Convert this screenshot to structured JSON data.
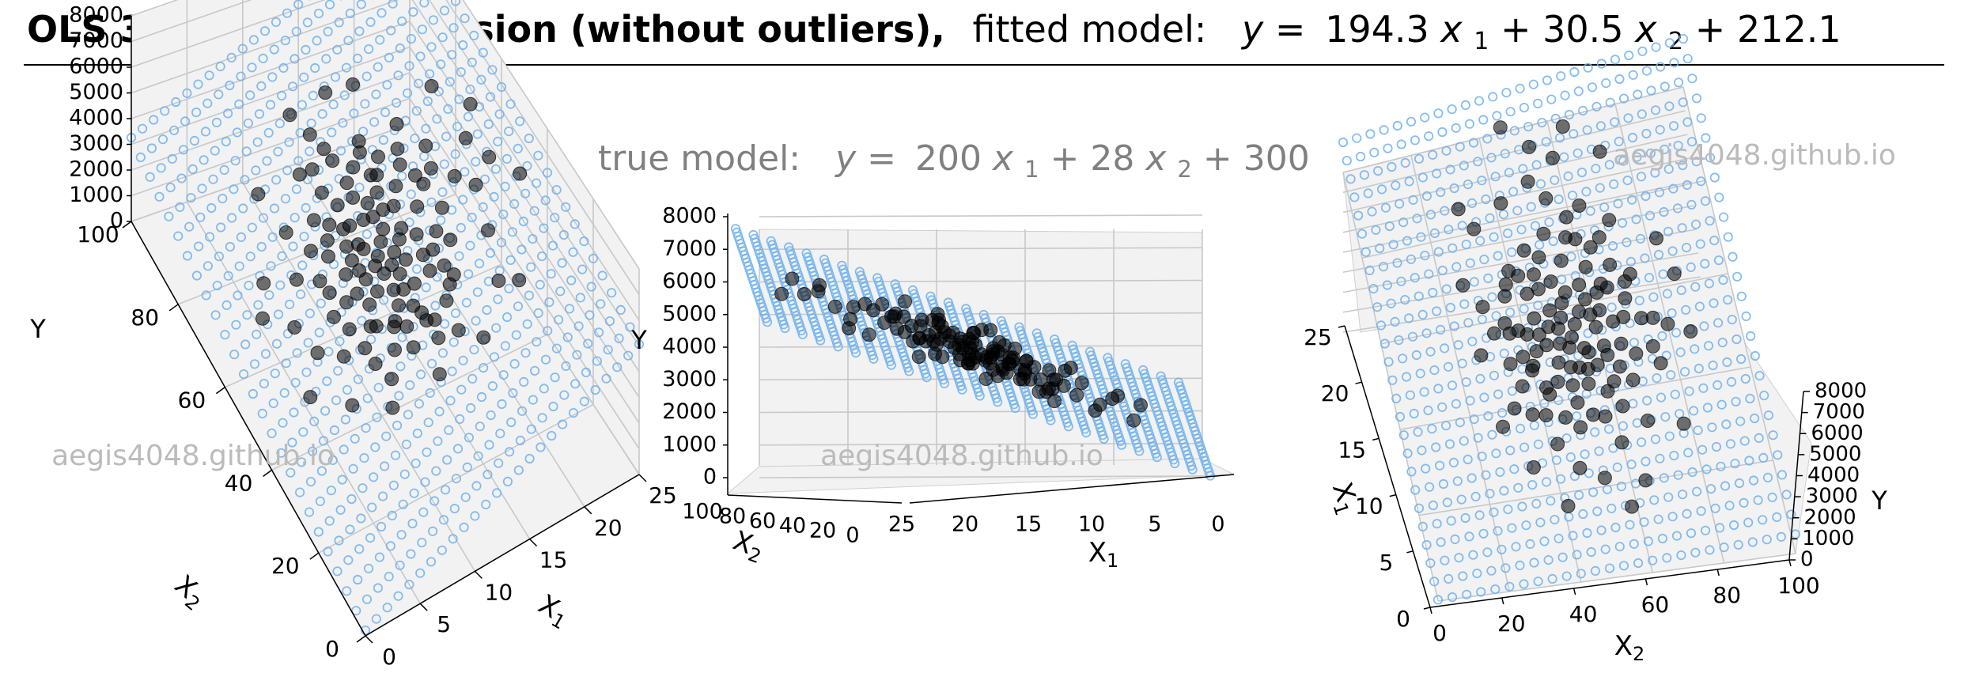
{
  "title": {
    "bold": "OLS 3D Linear Regression (without outliers),",
    "prefix": "fitted model:",
    "model": {
      "c1": "194.3",
      "c2": "30.5",
      "intercept": "212.1"
    }
  },
  "true_model": {
    "prefix": "true model:",
    "c1": "200",
    "c2": "28",
    "intercept": "300"
  },
  "watermark": "aegis4048.github.io",
  "colors": {
    "plane": "#6fb2f0",
    "points": "#000000",
    "annotation": "#808080",
    "watermark": "#bbbbbb"
  },
  "axis_labels": {
    "x1": "X",
    "x1_sub": "1",
    "x2": "X",
    "x2_sub": "2",
    "y": "Y"
  },
  "ticks": {
    "x1": [
      "0",
      "5",
      "10",
      "15",
      "20",
      "25"
    ],
    "x2": [
      "0",
      "20",
      "40",
      "60",
      "80",
      "100"
    ],
    "y": [
      "0",
      "1000",
      "2000",
      "3000",
      "4000",
      "5000",
      "6000",
      "7000",
      "8000"
    ]
  },
  "chart_data": [
    {
      "type": "scatter",
      "view": "perspective",
      "title": "",
      "xlabel": "X1",
      "ylabel": "X2",
      "zlabel": "Y",
      "xlim": [
        0,
        25
      ],
      "ylim": [
        0,
        100
      ],
      "zlim": [
        0,
        8000
      ],
      "grid": true,
      "surface": {
        "name": "fitted plane",
        "c1": 194.3,
        "c2": 30.5,
        "intercept": 212.1
      },
      "series_ref": "points"
    },
    {
      "type": "scatter",
      "view": "edge-on",
      "xlabel": "X1",
      "ylabel": "X2",
      "zlabel": "Y",
      "xlim": [
        0,
        25
      ],
      "ylim": [
        0,
        100
      ],
      "zlim": [
        0,
        8000
      ],
      "grid": true,
      "surface": {
        "name": "fitted plane",
        "c1": 194.3,
        "c2": 30.5,
        "intercept": 212.1
      },
      "series_ref": "points"
    },
    {
      "type": "scatter",
      "view": "top-down",
      "xlabel": "X1",
      "ylabel": "X2",
      "zlabel": "Y",
      "xlim": [
        0,
        25
      ],
      "ylim": [
        0,
        100
      ],
      "zlim": [
        0,
        8000
      ],
      "grid": true,
      "surface": {
        "name": "fitted plane",
        "c1": 194.3,
        "c2": 30.5,
        "intercept": 212.1
      },
      "series_ref": "points"
    }
  ],
  "points": [
    [
      12.6,
      48.2,
      4100
    ],
    [
      9.8,
      41.5,
      3300
    ],
    [
      14.2,
      62.3,
      5200
    ],
    [
      11.0,
      55.0,
      4200
    ],
    [
      7.9,
      52.6,
      3300
    ],
    [
      13.1,
      30.4,
      3800
    ],
    [
      15.6,
      44.7,
      4600
    ],
    [
      10.4,
      67.8,
      4400
    ],
    [
      16.8,
      58.1,
      5300
    ],
    [
      8.6,
      36.2,
      2900
    ],
    [
      12.1,
      71.4,
      4800
    ],
    [
      11.7,
      40.9,
      3800
    ],
    [
      13.8,
      50.6,
      4500
    ],
    [
      9.3,
      60.2,
      3900
    ],
    [
      14.9,
      35.5,
      4100
    ],
    [
      10.9,
      46.3,
      3700
    ],
    [
      12.9,
      57.7,
      4500
    ],
    [
      15.1,
      66.0,
      5200
    ],
    [
      8.1,
      45.0,
      3000
    ],
    [
      11.4,
      33.1,
      3400
    ],
    [
      17.5,
      49.8,
      5100
    ],
    [
      13.4,
      42.2,
      4100
    ],
    [
      10.2,
      53.9,
      3900
    ],
    [
      12.3,
      63.5,
      4500
    ],
    [
      14.5,
      56.4,
      4800
    ],
    [
      9.6,
      48.8,
      3500
    ],
    [
      16.1,
      38.0,
      4500
    ],
    [
      11.2,
      59.6,
      4200
    ],
    [
      13.0,
      37.2,
      3800
    ],
    [
      12.0,
      51.3,
      4100
    ],
    [
      6.8,
      41.2,
      2800
    ],
    [
      15.9,
      53.0,
      5000
    ],
    [
      10.6,
      72.9,
      4500
    ],
    [
      18.4,
      61.2,
      5700
    ],
    [
      8.9,
      57.9,
      3700
    ],
    [
      13.6,
      46.9,
      4300
    ],
    [
      11.9,
      44.0,
      3900
    ],
    [
      14.1,
      69.1,
      5100
    ],
    [
      9.1,
      31.6,
      2900
    ],
    [
      12.7,
      39.4,
      3800
    ],
    [
      16.4,
      47.1,
      4800
    ],
    [
      10.0,
      62.7,
      4000
    ],
    [
      13.2,
      54.8,
      4400
    ],
    [
      11.5,
      50.1,
      4000
    ],
    [
      15.3,
      59.3,
      5000
    ],
    [
      7.4,
      48.4,
      3100
    ],
    [
      12.4,
      66.6,
      4600
    ],
    [
      14.7,
      41.7,
      4400
    ],
    [
      10.8,
      38.6,
      3500
    ],
    [
      13.9,
      60.8,
      4800
    ],
    [
      9.5,
      53.2,
      3600
    ],
    [
      17.0,
      55.5,
      5300
    ],
    [
      11.1,
      64.4,
      4300
    ],
    [
      12.8,
      45.6,
      4100
    ],
    [
      8.4,
      39.8,
      3000
    ],
    [
      15.0,
      48.9,
      4700
    ],
    [
      10.3,
      56.7,
      4000
    ],
    [
      13.5,
      33.9,
      3900
    ],
    [
      12.2,
      58.5,
      4400
    ],
    [
      14.3,
      52.2,
      4600
    ],
    [
      9.9,
      44.9,
      3600
    ],
    [
      16.6,
      64.8,
      5400
    ],
    [
      11.6,
      36.9,
      3600
    ],
    [
      13.3,
      68.2,
      4800
    ],
    [
      10.5,
      49.3,
      3800
    ],
    [
      19.2,
      52.5,
      5600
    ],
    [
      8.0,
      61.1,
      3600
    ],
    [
      14.8,
      45.1,
      4500
    ],
    [
      12.5,
      42.6,
      4000
    ],
    [
      11.3,
      54.1,
      4100
    ],
    [
      15.7,
      40.3,
      4600
    ],
    [
      9.2,
      65.5,
      3900
    ],
    [
      13.7,
      57.2,
      4700
    ],
    [
      10.1,
      35.0,
      3300
    ],
    [
      12.0,
      74.6,
      4800
    ],
    [
      16.9,
      43.4,
      4900
    ],
    [
      11.8,
      47.7,
      4000
    ],
    [
      14.0,
      63.9,
      5000
    ],
    [
      7.7,
      55.8,
      3300
    ],
    [
      13.1,
      49.5,
      4300
    ],
    [
      10.7,
      60.0,
      4100
    ],
    [
      15.4,
      36.4,
      4500
    ],
    [
      12.6,
      52.9,
      4300
    ],
    [
      9.4,
      42.0,
      3300
    ],
    [
      18.0,
      57.0,
      5500
    ],
    [
      11.0,
      39.1,
      3600
    ],
    [
      14.4,
      71.0,
      5200
    ],
    [
      12.9,
      34.6,
      3900
    ],
    [
      10.4,
      51.7,
      3800
    ],
    [
      16.2,
      61.8,
      5300
    ],
    [
      8.7,
      49.1,
      3300
    ],
    [
      13.0,
      60.5,
      4600
    ],
    [
      5.4,
      45.9,
      2500
    ],
    [
      20.3,
      48.6,
      5600
    ],
    [
      11.5,
      78.2,
      4900
    ],
    [
      14.6,
      28.8,
      4000
    ],
    [
      6.2,
      58.7,
      3200
    ],
    [
      19.6,
      39.9,
      5200
    ],
    [
      9.7,
      74.0,
      4300
    ],
    [
      17.3,
      68.5,
      5700
    ],
    [
      4.6,
      52.0,
      2700
    ],
    [
      21.1,
      56.8,
      6100
    ],
    [
      12.2,
      25.6,
      3300
    ],
    [
      7.0,
      67.0,
      3600
    ],
    [
      18.7,
      31.0,
      4700
    ],
    [
      3.6,
      40.5,
      2000
    ],
    [
      22.5,
      61.5,
      6500
    ],
    [
      15.8,
      80.3,
      5800
    ],
    [
      8.3,
      27.4,
      2600
    ],
    [
      5.9,
      33.4,
      2300
    ],
    [
      20.8,
      70.2,
      6300
    ],
    [
      16.0,
      24.7,
      4000
    ],
    [
      10.9,
      84.0,
      4900
    ],
    [
      23.4,
      44.3,
      6000
    ],
    [
      2.9,
      57.6,
      2500
    ],
    [
      13.9,
      83.1,
      5400
    ],
    [
      19.9,
      27.9,
      4900
    ],
    [
      6.5,
      76.6,
      3700
    ],
    [
      22.0,
      51.0,
      6000
    ],
    [
      4.1,
      62.9,
      2800
    ]
  ]
}
